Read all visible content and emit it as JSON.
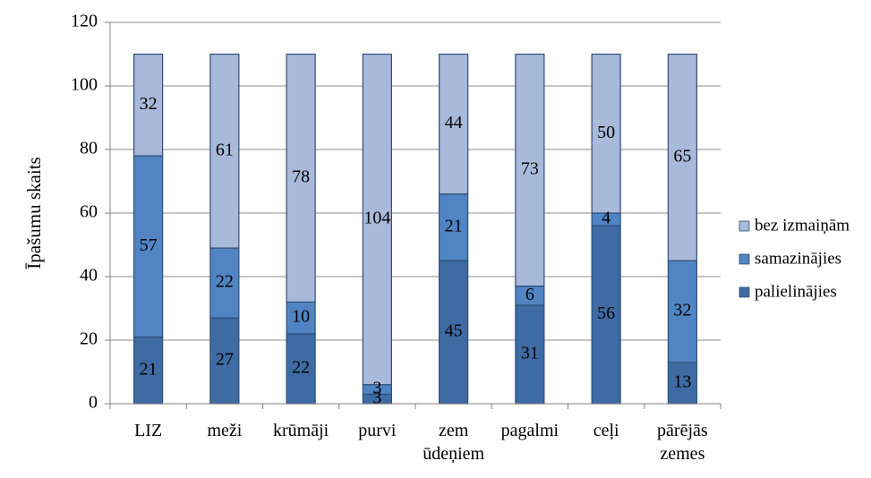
{
  "chart_data": {
    "type": "bar",
    "stacked": true,
    "ylabel": "Īpašumu skaits",
    "xlabel": "",
    "ylim": [
      0,
      120
    ],
    "yticks": [
      "0",
      "20",
      "40",
      "60",
      "80",
      "100",
      "120"
    ],
    "grid": true,
    "legend_position": "right",
    "categories": [
      [
        "LIZ"
      ],
      [
        "meži"
      ],
      [
        "krūmāji"
      ],
      [
        "purvi"
      ],
      [
        "zem",
        "ūdeņiem"
      ],
      [
        "pagalmi"
      ],
      [
        "ceļi"
      ],
      [
        "pārējās",
        "zemes"
      ]
    ],
    "series": [
      {
        "name": "palielinājies",
        "color": "#3e6ba3",
        "values": [
          21,
          27,
          22,
          3,
          45,
          31,
          56,
          13
        ]
      },
      {
        "name": "samazinājies",
        "color": "#5184c2",
        "values": [
          57,
          22,
          10,
          3,
          21,
          6,
          4,
          32
        ]
      },
      {
        "name": "bez izmaiņām",
        "color": "#a8b9d9",
        "values": [
          32,
          61,
          78,
          104,
          44,
          73,
          50,
          65
        ]
      }
    ],
    "legend_order": [
      "bez izmaiņām",
      "samazinājies",
      "palielinājies"
    ]
  }
}
